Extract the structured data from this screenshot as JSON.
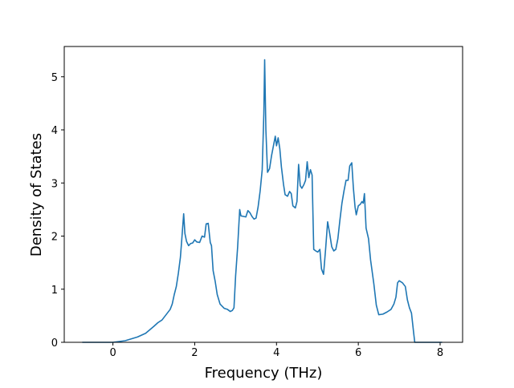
{
  "chart_data": {
    "type": "line",
    "xlabel": "Frequency (THz)",
    "ylabel": "Density of States",
    "x": [
      -0.75,
      0,
      0.3,
      0.6,
      0.8,
      1.0,
      1.1,
      1.2,
      1.3,
      1.4,
      1.45,
      1.5,
      1.55,
      1.6,
      1.65,
      1.68,
      1.73,
      1.76,
      1.8,
      1.85,
      1.9,
      1.95,
      2.0,
      2.05,
      2.12,
      2.18,
      2.24,
      2.28,
      2.33,
      2.38,
      2.41,
      2.45,
      2.5,
      2.55,
      2.62,
      2.72,
      2.8,
      2.87,
      2.92,
      2.96,
      3.0,
      3.05,
      3.1,
      3.13,
      3.2,
      3.25,
      3.3,
      3.35,
      3.4,
      3.45,
      3.5,
      3.55,
      3.6,
      3.65,
      3.69,
      3.71,
      3.74,
      3.78,
      3.83,
      3.88,
      3.93,
      3.97,
      4.0,
      4.04,
      4.08,
      4.12,
      4.17,
      4.21,
      4.27,
      4.32,
      4.36,
      4.4,
      4.46,
      4.5,
      4.54,
      4.58,
      4.62,
      4.67,
      4.71,
      4.75,
      4.79,
      4.83,
      4.87,
      4.91,
      4.96,
      5.01,
      5.06,
      5.1,
      5.15,
      5.2,
      5.25,
      5.3,
      5.35,
      5.4,
      5.45,
      5.5,
      5.55,
      5.6,
      5.65,
      5.7,
      5.75,
      5.79,
      5.84,
      5.88,
      5.92,
      5.95,
      6.0,
      6.05,
      6.09,
      6.12,
      6.15,
      6.19,
      6.25,
      6.3,
      6.38,
      6.44,
      6.5,
      6.6,
      6.7,
      6.8,
      6.87,
      6.92,
      6.96,
      7.0,
      7.08,
      7.15,
      7.2,
      7.25,
      7.3,
      7.35,
      7.38,
      8.05
    ],
    "series": [
      {
        "color": "#1f77b4",
        "values": [
          0,
          0,
          0.03,
          0.1,
          0.17,
          0.3,
          0.37,
          0.42,
          0.52,
          0.62,
          0.72,
          0.9,
          1.05,
          1.3,
          1.6,
          1.9,
          2.42,
          2.05,
          1.9,
          1.82,
          1.86,
          1.87,
          1.93,
          1.89,
          1.88,
          2.0,
          1.98,
          2.23,
          2.24,
          1.88,
          1.82,
          1.35,
          1.15,
          0.9,
          0.72,
          0.64,
          0.62,
          0.58,
          0.6,
          0.65,
          1.25,
          1.8,
          2.5,
          2.38,
          2.37,
          2.36,
          2.48,
          2.44,
          2.37,
          2.32,
          2.34,
          2.55,
          2.85,
          3.25,
          4.3,
          5.32,
          4.0,
          3.2,
          3.27,
          3.52,
          3.72,
          3.88,
          3.7,
          3.85,
          3.65,
          3.3,
          2.98,
          2.78,
          2.75,
          2.84,
          2.8,
          2.57,
          2.53,
          2.65,
          3.35,
          2.95,
          2.9,
          2.97,
          3.05,
          3.4,
          3.1,
          3.25,
          3.15,
          1.75,
          1.72,
          1.7,
          1.75,
          1.38,
          1.28,
          1.75,
          2.27,
          2.05,
          1.8,
          1.72,
          1.75,
          1.95,
          2.3,
          2.62,
          2.85,
          3.05,
          3.05,
          3.32,
          3.38,
          2.9,
          2.55,
          2.4,
          2.57,
          2.6,
          2.65,
          2.62,
          2.8,
          2.15,
          1.95,
          1.55,
          1.1,
          0.7,
          0.52,
          0.53,
          0.57,
          0.62,
          0.72,
          0.85,
          1.12,
          1.16,
          1.12,
          1.05,
          0.8,
          0.65,
          0.55,
          0.2,
          0,
          0
        ]
      }
    ],
    "xlim": [
      -1.19,
      8.55
    ],
    "ylim": [
      0,
      5.57
    ],
    "xticks": [
      0,
      2,
      4,
      6,
      8
    ],
    "yticks": [
      0,
      1,
      2,
      3,
      4,
      5
    ]
  }
}
